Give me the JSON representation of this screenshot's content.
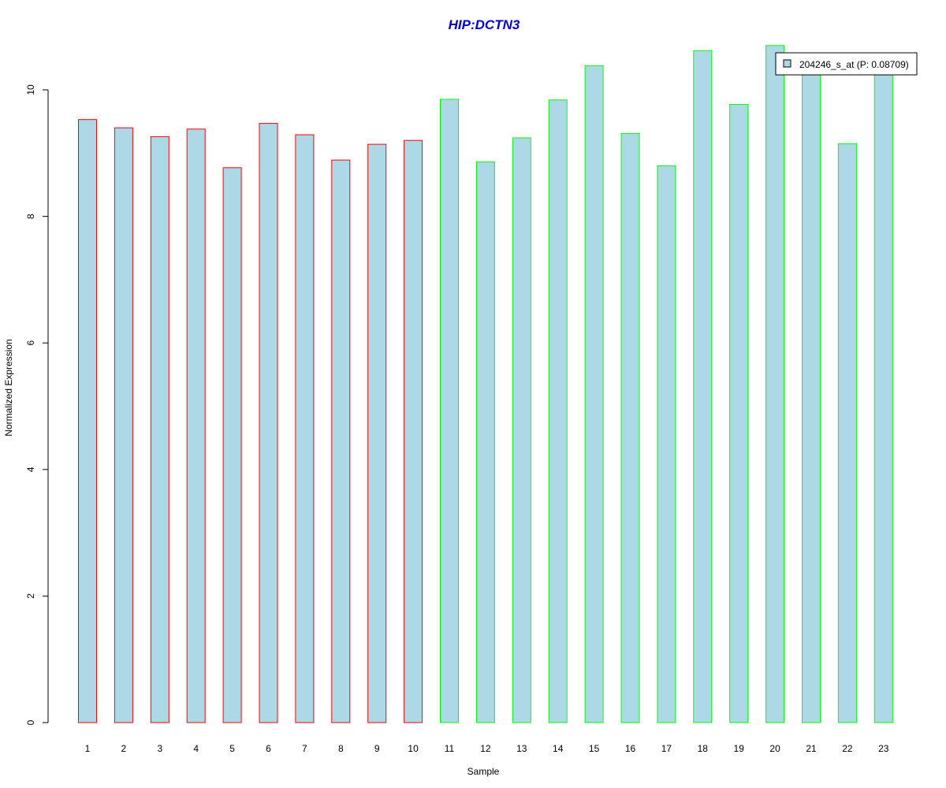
{
  "chart_data": {
    "type": "bar",
    "title": "HIP:DCTN3",
    "xlabel": "Sample",
    "ylabel": "Normalized Expression",
    "categories": [
      "1",
      "2",
      "3",
      "4",
      "5",
      "6",
      "7",
      "8",
      "9",
      "10",
      "11",
      "12",
      "13",
      "14",
      "15",
      "16",
      "17",
      "18",
      "19",
      "20",
      "21",
      "22",
      "23"
    ],
    "series": [
      {
        "name": "204246_s_at (P: 0.08709)",
        "values": [
          9.53,
          9.4,
          9.26,
          9.38,
          8.77,
          9.47,
          9.29,
          8.89,
          9.14,
          9.2,
          9.85,
          8.86,
          9.24,
          9.84,
          10.38,
          9.31,
          8.8,
          10.62,
          9.77,
          10.7,
          10.35,
          9.15,
          10.4
        ],
        "group": [
          "a",
          "a",
          "a",
          "a",
          "a",
          "a",
          "a",
          "a",
          "a",
          "a",
          "b",
          "b",
          "b",
          "b",
          "b",
          "b",
          "b",
          "b",
          "b",
          "b",
          "b",
          "b",
          "b"
        ]
      }
    ],
    "yticks": [
      0,
      2,
      4,
      6,
      8,
      10
    ],
    "ylim": [
      0,
      10.8
    ],
    "grid": false,
    "legend_position": "top-right",
    "colors": {
      "bar_fill": "#add8e6",
      "group_a_border": "#ff0000",
      "group_b_border": "#00ff00",
      "title": "#0000cd"
    }
  }
}
